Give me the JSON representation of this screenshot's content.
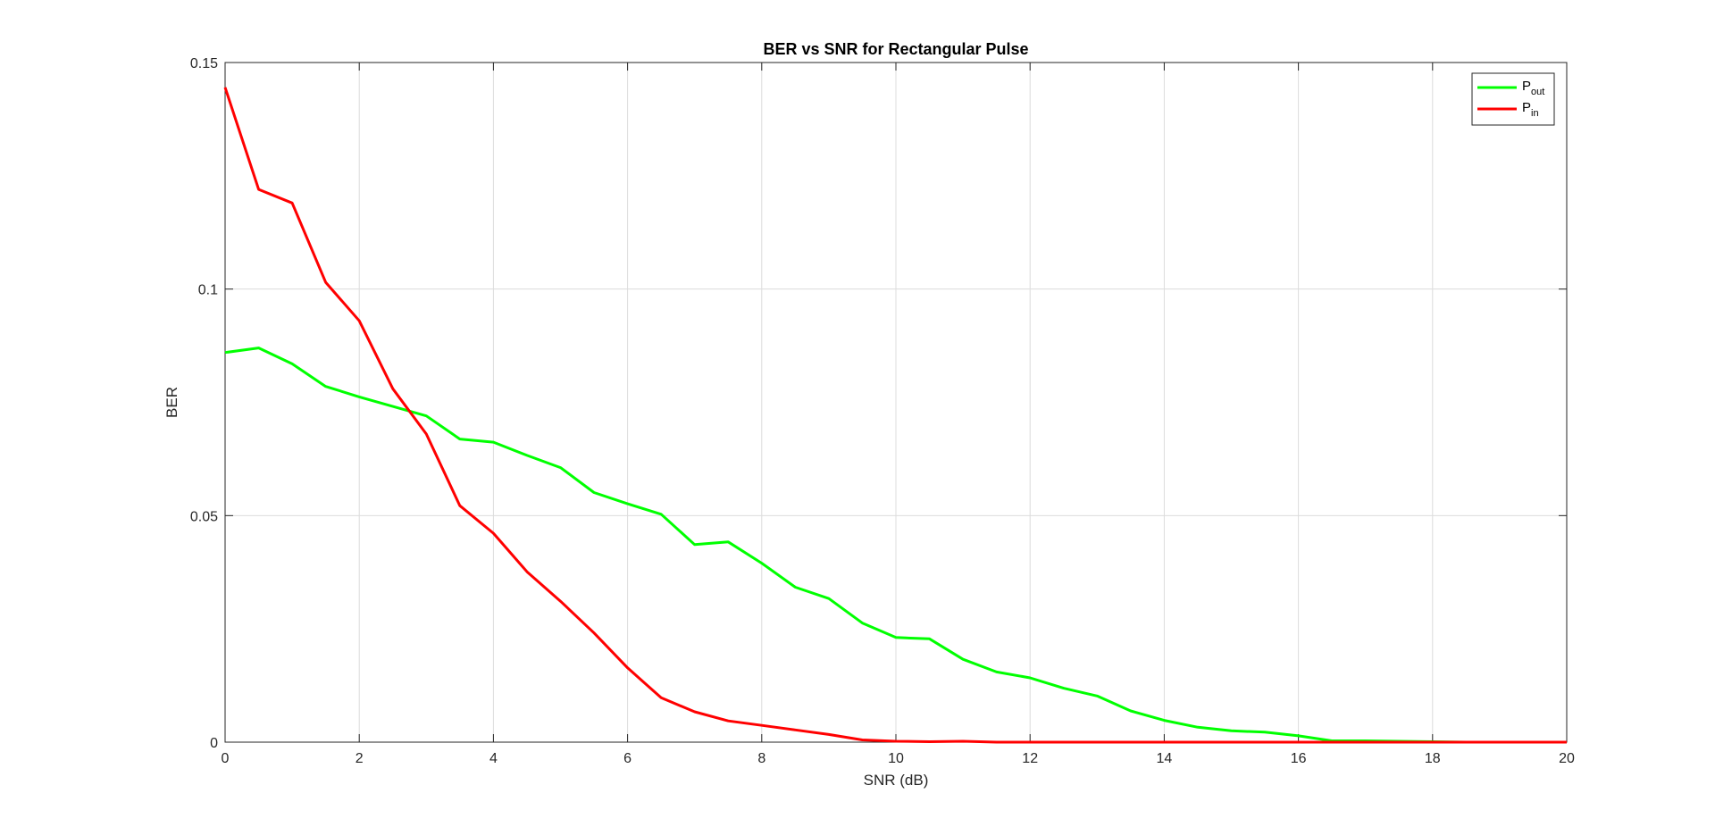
{
  "chart_data": {
    "type": "line",
    "title": "BER vs SNR for Rectangular Pulse",
    "xlabel": "SNR (dB)",
    "ylabel": "BER",
    "xlim": [
      0,
      20
    ],
    "ylim": [
      0,
      0.15
    ],
    "xticks": [
      0,
      2,
      4,
      6,
      8,
      10,
      12,
      14,
      16,
      18,
      20
    ],
    "xtick_labels": [
      "0",
      "2",
      "4",
      "6",
      "8",
      "10",
      "12",
      "14",
      "16",
      "18",
      "20"
    ],
    "yticks": [
      0,
      0.05,
      0.1,
      0.15
    ],
    "ytick_labels": [
      "0",
      "0.05",
      "0.1",
      "0.15"
    ],
    "grid": true,
    "legend_position": "top-right",
    "x": [
      0,
      0.5,
      1,
      1.5,
      2,
      2.5,
      3,
      3.5,
      4,
      4.5,
      5,
      5.5,
      6,
      6.5,
      7,
      7.5,
      8,
      8.5,
      9,
      9.5,
      10,
      10.5,
      11,
      11.5,
      12,
      12.5,
      13,
      13.5,
      14,
      14.5,
      15,
      15.5,
      16,
      16.5,
      17,
      17.5,
      18,
      18.5,
      19,
      19.5,
      20
    ],
    "series": [
      {
        "name": "P",
        "subscript": "out",
        "color": "#00ff00",
        "values": [
          0.086,
          0.087,
          0.0835,
          0.0785,
          0.0762,
          0.0741,
          0.072,
          0.0669,
          0.0662,
          0.0633,
          0.0606,
          0.0551,
          0.0526,
          0.0503,
          0.0436,
          0.0442,
          0.0395,
          0.0342,
          0.0317,
          0.0263,
          0.0231,
          0.0228,
          0.0183,
          0.0155,
          0.0142,
          0.0119,
          0.0102,
          0.0069,
          0.0048,
          0.0033,
          0.0025,
          0.0022,
          0.0014,
          0.0003,
          0.0003,
          0.0002,
          0.0001,
          0,
          0,
          0,
          0
        ]
      },
      {
        "name": "P",
        "subscript": "in",
        "color": "#ff0000",
        "values": [
          0.1445,
          0.122,
          0.119,
          0.1015,
          0.093,
          0.078,
          0.068,
          0.0522,
          0.0461,
          0.0376,
          0.0311,
          0.0241,
          0.0164,
          0.0098,
          0.0067,
          0.0047,
          0.0037,
          0.0027,
          0.0017,
          0.0005,
          0.0002,
          0.0001,
          0.0002,
          0,
          0,
          0,
          0,
          0,
          0,
          0,
          0,
          0,
          0,
          0,
          0,
          0,
          0,
          0,
          0,
          0,
          0
        ]
      }
    ]
  }
}
